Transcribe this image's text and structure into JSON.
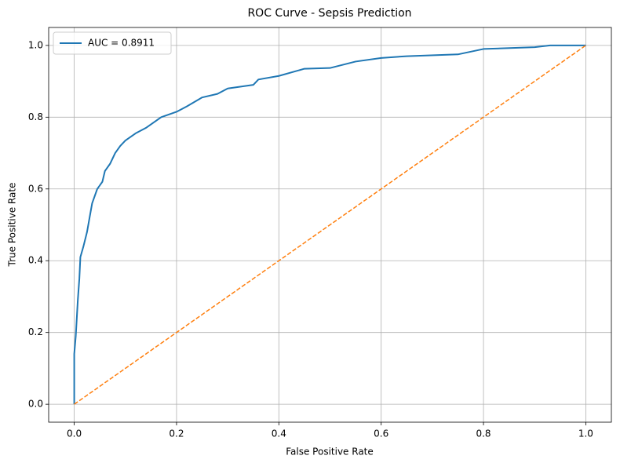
{
  "chart_data": {
    "type": "line",
    "title": "ROC Curve - Sepsis Prediction",
    "xlabel": "False Positive Rate",
    "ylabel": "True Positive Rate",
    "series": [
      {
        "name": "AUC = 0.8911",
        "color": "#1f77b4",
        "linestyle": "solid",
        "x": [
          0,
          0,
          0.003,
          0.005,
          0.007,
          0.01,
          0.012,
          0.018,
          0.025,
          0.03,
          0.035,
          0.045,
          0.055,
          0.06,
          0.07,
          0.08,
          0.09,
          0.1,
          0.12,
          0.14,
          0.17,
          0.2,
          0.22,
          0.25,
          0.28,
          0.3,
          0.35,
          0.36,
          0.4,
          0.45,
          0.5,
          0.55,
          0.6,
          0.65,
          0.75,
          0.8,
          0.9,
          0.93,
          1
        ],
        "values": [
          0,
          0.14,
          0.19,
          0.24,
          0.29,
          0.35,
          0.41,
          0.44,
          0.48,
          0.52,
          0.56,
          0.6,
          0.62,
          0.65,
          0.67,
          0.7,
          0.72,
          0.735,
          0.755,
          0.77,
          0.8,
          0.815,
          0.83,
          0.855,
          0.865,
          0.88,
          0.89,
          0.905,
          0.915,
          0.935,
          0.937,
          0.955,
          0.965,
          0.97,
          0.975,
          0.99,
          0.995,
          1.0,
          1
        ]
      },
      {
        "color": "#ff7f0e",
        "linestyle": "dashed",
        "x": [
          0,
          1
        ],
        "values": [
          0,
          1
        ]
      }
    ],
    "xlim": [
      -0.05,
      1.05
    ],
    "ylim": [
      -0.05,
      1.05
    ],
    "xticks": [
      {
        "value": 0,
        "label": "0.0"
      },
      0.2,
      0.4,
      0.6,
      0.8,
      {
        "value": 1,
        "label": "1.0"
      }
    ],
    "yticks": [
      {
        "value": 0,
        "label": "0.0"
      },
      0.2,
      0.4,
      0.6,
      0.8,
      {
        "value": 1,
        "label": "1.0"
      }
    ],
    "grid": true,
    "legend": "upper left"
  }
}
